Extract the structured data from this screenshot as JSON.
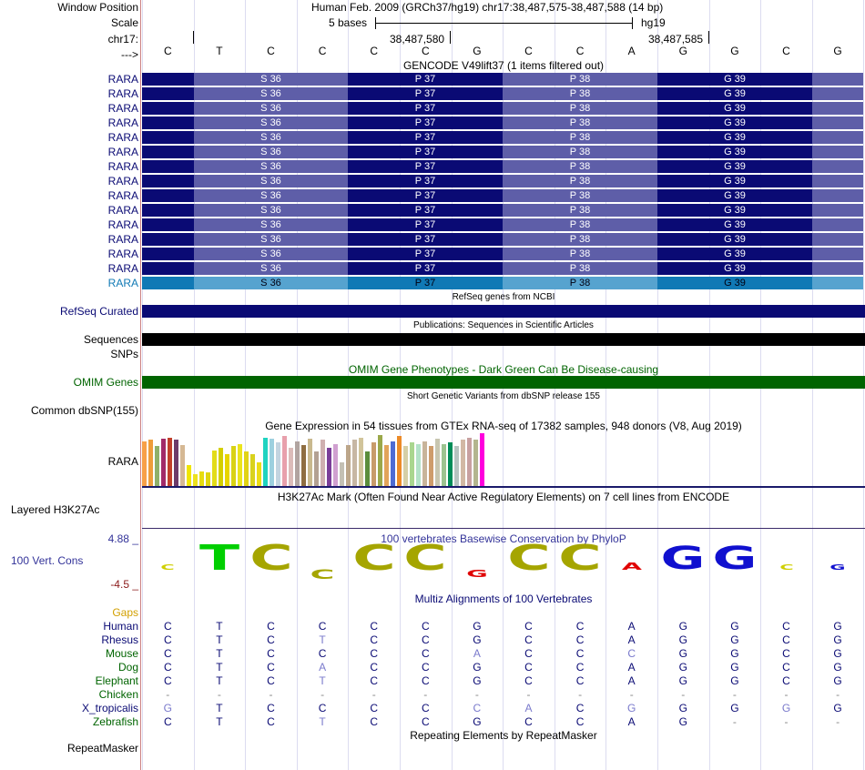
{
  "header": {
    "window_position_label": "Window Position",
    "scale_label": "Scale",
    "chrom_label": "chr17:",
    "strand_label": "--->",
    "assembly_info": "Human Feb. 2009 (GRCh37/hg19)   chr17:38,487,575-38,487,588 (14 bp)",
    "scale_text": "5 bases",
    "db": "hg19",
    "ruler_pos_1": "38,487,580",
    "ruler_pos_2": "38,487,585"
  },
  "sequence": [
    "C",
    "T",
    "C",
    "C",
    "C",
    "C",
    "G",
    "C",
    "C",
    "A",
    "G",
    "G",
    "C",
    "G"
  ],
  "gencode": {
    "title": "GENCODE V49lift37 (1 items filtered out)",
    "gene": "RARA",
    "codons": [
      "S 36",
      "P 37",
      "P 38",
      "G 39"
    ],
    "row_count": 15
  },
  "tracks": {
    "refseq_title": "RefSeq genes from NCBI",
    "refseq_label": "RefSeq Curated",
    "publications_title": "Publications: Sequences in Scientific Articles",
    "sequences_label": "Sequences",
    "snps_label": "SNPs",
    "omim_title": "OMIM Gene Phenotypes - Dark Green Can Be Disease-causing",
    "omim_label": "OMIM Genes",
    "dbsnp_title": "Short Genetic Variants from dbSNP release 155",
    "dbsnp_label": "Common dbSNP(155)",
    "gtex_title": "Gene Expression in 54 tissues from GTEx RNA-seq of 17382 samples, 948 donors (V8, Aug 2019)",
    "gtex_label": "RARA",
    "h3k27ac_title": "H3K27Ac Mark (Often Found Near Active Regulatory Elements) on 7 cell lines from ENCODE",
    "h3k27ac_label": "Layered H3K27Ac",
    "phylop_title": "100 vertebrates Basewise Conservation by PhyloP",
    "phylop_label": "100 Vert. Cons",
    "phylop_max": "4.88 _",
    "phylop_min": "-4.5 _",
    "multiz_title": "Multiz Alignments of 100 Vertebrates",
    "gaps_label": "Gaps",
    "repeat_title": "Repeating Elements by RepeatMasker",
    "repeat_label": "RepeatMasker"
  },
  "gtex_values": [
    0.85,
    0.88,
    0.75,
    0.9,
    0.92,
    0.88,
    0.78,
    0.4,
    0.22,
    0.28,
    0.25,
    0.68,
    0.72,
    0.6,
    0.75,
    0.8,
    0.65,
    0.6,
    0.45,
    0.92,
    0.9,
    0.82,
    0.95,
    0.72,
    0.85,
    0.78,
    0.9,
    0.65,
    0.88,
    0.72,
    0.8,
    0.45,
    0.78,
    0.88,
    0.92,
    0.65,
    0.82,
    0.96,
    0.78,
    0.85,
    0.95,
    0.75,
    0.82,
    0.8,
    0.85,
    0.75,
    0.9,
    0.8,
    0.82,
    0.75,
    0.88,
    0.92,
    0.88,
    1.0
  ],
  "gtex_colors": [
    "#f7a048",
    "#ee9d3a",
    "#8fb06a",
    "#a22a68",
    "#c13f2a",
    "#6d3b6a",
    "#d5b894",
    "#f0e500",
    "#ede21e",
    "#e7dc10",
    "#dfd50d",
    "#e2dc19",
    "#d4cf00",
    "#e7d500",
    "#d9d214",
    "#ebe41d",
    "#e1d315",
    "#d9d21d",
    "#ecdc16",
    "#1fd3c0",
    "#9dd0df",
    "#c3d4e0",
    "#e8a0ac",
    "#dcbcb9",
    "#b1a4a0",
    "#8f6e42",
    "#c9b98e",
    "#b3a193",
    "#cfb0b0",
    "#7b3e99",
    "#d0a0d0",
    "#c4c0b4",
    "#bca68a",
    "#c7b7a4",
    "#d1c49a",
    "#5b8d3c",
    "#c89b6a",
    "#9ba84a",
    "#e2a45a",
    "#4d6bd3",
    "#ec8b27",
    "#d5cfa6",
    "#a9d68f",
    "#b3e2c8",
    "#c8b49a",
    "#ce9c6b",
    "#c8c6b0",
    "#9cc390",
    "#008c58",
    "#b6c3c0",
    "#d2b8a4",
    "#c8a0a0",
    "#b3b58e",
    "#ff00dd"
  ],
  "phylop_letters": [
    {
      "base": "C",
      "color": "#cfcf00",
      "h": 6
    },
    {
      "base": "T",
      "color": "#00cf00",
      "h": 28
    },
    {
      "base": "C",
      "color": "#a5a500",
      "h": 28
    },
    {
      "base": "C",
      "color": "#a5a500",
      "h": 10,
      "neg": true
    },
    {
      "base": "C",
      "color": "#a5a500",
      "h": 28
    },
    {
      "base": "C",
      "color": "#a5a500",
      "h": 28
    },
    {
      "base": "G",
      "color": "#e00000",
      "h": 8,
      "neg": true
    },
    {
      "base": "C",
      "color": "#a5a500",
      "h": 28
    },
    {
      "base": "C",
      "color": "#a5a500",
      "h": 28
    },
    {
      "base": "A",
      "color": "#e00000",
      "h": 8
    },
    {
      "base": "G",
      "color": "#1010cf",
      "h": 26
    },
    {
      "base": "G",
      "color": "#1010cf",
      "h": 26
    },
    {
      "base": "C",
      "color": "#cfcf00",
      "h": 0
    },
    {
      "base": "G",
      "color": "#1010cf",
      "h": 6
    }
  ],
  "alignment": [
    {
      "species": "Human",
      "color": "#0a0a74",
      "bases": [
        "C",
        "T",
        "C",
        "C",
        "C",
        "C",
        "G",
        "C",
        "C",
        "A",
        "G",
        "G",
        "C",
        "G"
      ],
      "diff": []
    },
    {
      "species": "Rhesus",
      "color": "#0a0a74",
      "bases": [
        "C",
        "T",
        "C",
        "T",
        "C",
        "C",
        "G",
        "C",
        "C",
        "A",
        "G",
        "G",
        "C",
        "G"
      ],
      "diff": [
        3
      ]
    },
    {
      "species": "Mouse",
      "color": "#006400",
      "bases": [
        "C",
        "T",
        "C",
        "C",
        "C",
        "C",
        "A",
        "C",
        "C",
        "C",
        "G",
        "G",
        "C",
        "G"
      ],
      "diff": [
        6,
        9
      ]
    },
    {
      "species": "Dog",
      "color": "#006400",
      "bases": [
        "C",
        "T",
        "C",
        "A",
        "C",
        "C",
        "G",
        "C",
        "C",
        "A",
        "G",
        "G",
        "C",
        "G"
      ],
      "diff": [
        3
      ]
    },
    {
      "species": "Elephant",
      "color": "#006400",
      "bases": [
        "C",
        "T",
        "C",
        "T",
        "C",
        "C",
        "G",
        "C",
        "C",
        "A",
        "G",
        "G",
        "C",
        "G"
      ],
      "diff": [
        3
      ]
    },
    {
      "species": "Chicken",
      "color": "#006400",
      "bases": [
        "-",
        "-",
        "-",
        "-",
        "-",
        "-",
        "-",
        "-",
        "-",
        "-",
        "-",
        "-",
        "-",
        "-"
      ],
      "diff": []
    },
    {
      "species": "X_tropicalis",
      "color": "#0a0a74",
      "bases": [
        "G",
        "T",
        "C",
        "C",
        "C",
        "C",
        "C",
        "A",
        "C",
        "G",
        "G",
        "G",
        "G",
        "G"
      ],
      "diff": [
        0,
        6,
        7,
        9,
        12
      ]
    },
    {
      "species": "Zebrafish",
      "color": "#006400",
      "bases": [
        "C",
        "T",
        "C",
        "T",
        "C",
        "C",
        "G",
        "C",
        "C",
        "A",
        "G",
        "-",
        "-",
        "-"
      ],
      "diff": [
        3
      ]
    }
  ],
  "colors": {
    "coding_dark": "#0a0a74",
    "coding_light": "#5e5ea8",
    "highlight_dark": "#1079b5",
    "highlight_light": "#56a3cf",
    "omim": "#006400",
    "refseq": "#0a0a74",
    "gaps_label": "#d2a000",
    "phylop_label": "#333399",
    "phylop_max": "#333399",
    "phylop_min": "#8b1a1a"
  }
}
